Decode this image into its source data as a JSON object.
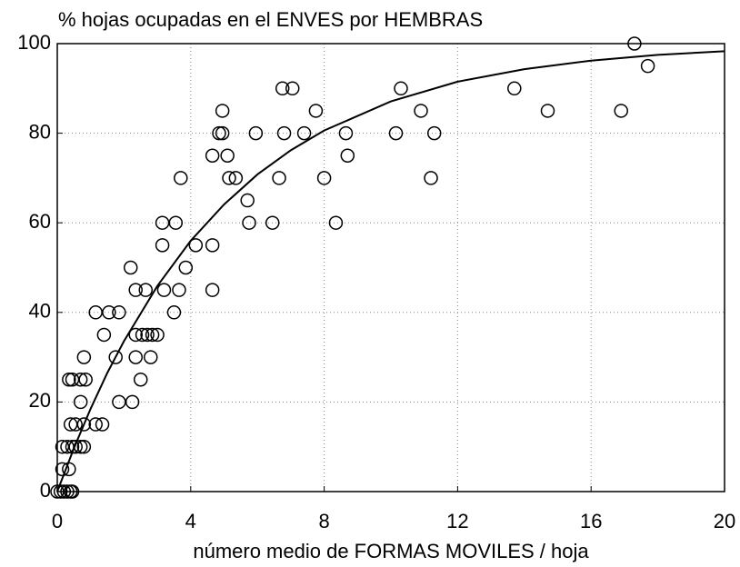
{
  "chart_data": {
    "type": "scatter",
    "title": "% hojas ocupadas en el ENVES por HEMBRAS",
    "x_label": "número medio de FORMAS MOVILES / hoja",
    "xlim": [
      0,
      20
    ],
    "xticks": [
      0,
      4,
      8,
      12,
      16,
      20
    ],
    "ylim": [
      0,
      100
    ],
    "yticks": [
      0,
      20,
      40,
      60,
      80,
      100
    ],
    "grid": true,
    "color": "#000000",
    "series": [
      {
        "x": [
          0,
          0.1,
          0.2,
          0.3,
          0.4,
          0.45,
          0.15,
          0.35,
          0.15,
          0.3,
          0.45,
          0.55,
          0.7,
          0.8,
          0.4,
          0.55,
          0.8,
          0.7,
          0.35,
          0.45,
          0.7,
          0.85,
          0.8,
          1.15,
          1.35,
          1.15,
          1.55,
          1.85,
          1.4,
          1.75,
          1.85,
          2.25,
          2.2,
          2.35,
          2.65,
          2.35,
          2.55,
          2.7,
          2.85,
          3.0,
          2.35,
          2.5,
          2.8,
          3.2,
          3.15,
          3.15,
          3.55,
          3.5,
          3.65,
          3.7,
          3.85,
          4.15,
          4.65,
          4.65,
          4.65,
          4.85,
          4.95,
          4.95,
          5.1,
          5.15,
          5.35,
          5.7,
          5.75,
          5.95,
          6.45,
          6.65,
          6.75,
          6.8,
          7.05,
          7.4,
          7.75,
          8.0,
          8.35,
          8.65,
          8.7,
          10.15,
          10.3,
          10.9,
          11.2,
          11.3,
          13.7,
          14.7,
          16.9,
          17.3,
          17.7
        ],
        "values": [
          0,
          0,
          0,
          0,
          0,
          0,
          5,
          5,
          10,
          10,
          10,
          10,
          10,
          10,
          15,
          15,
          15,
          20,
          25,
          25,
          25,
          25,
          30,
          15,
          15,
          40,
          40,
          40,
          35,
          30,
          20,
          20,
          50,
          45,
          45,
          35,
          35,
          35,
          35,
          35,
          30,
          25,
          30,
          45,
          55,
          60,
          60,
          40,
          45,
          70,
          50,
          55,
          55,
          45,
          75,
          80,
          80,
          85,
          75,
          70,
          70,
          65,
          60,
          80,
          60,
          70,
          90,
          80,
          90,
          80,
          85,
          70,
          60,
          80,
          75,
          80,
          90,
          85,
          70,
          80,
          90,
          85,
          85,
          100,
          95
        ]
      },
      {
        "type": "line",
        "x": [
          0,
          0.5,
          1,
          1.5,
          2,
          3,
          4,
          5,
          6,
          7,
          8,
          10,
          12,
          14,
          16,
          18,
          20
        ],
        "values": [
          0,
          9.7,
          18.5,
          26.5,
          33.6,
          45.9,
          56,
          64.1,
          70.8,
          76.2,
          80.6,
          87.1,
          91.5,
          94.3,
          96.2,
          97.5,
          98.3
        ]
      }
    ]
  }
}
